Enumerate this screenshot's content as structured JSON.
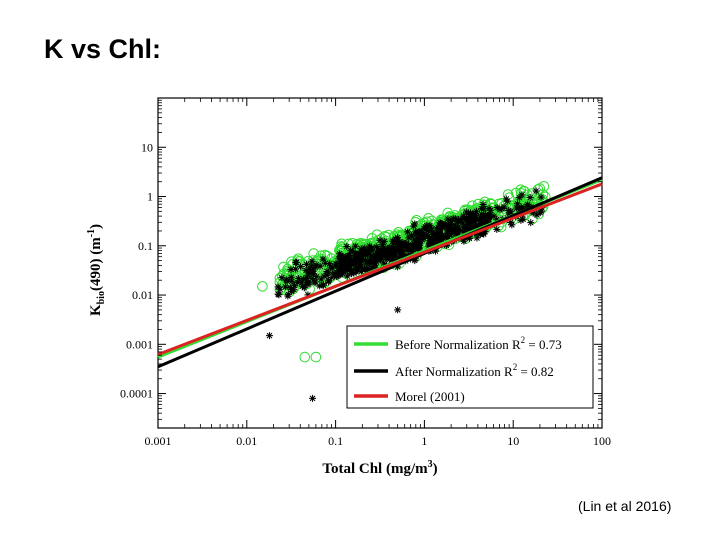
{
  "slide": {
    "title": "K vs Chl:",
    "citation": "(Lin et al 2016)"
  },
  "chart_data": {
    "type": "scatter",
    "xlabel_main": "Total Chl (mg/m",
    "xlabel_sup": "3",
    "xlabel_close": ")",
    "ylabel_main": "K",
    "ylabel_sub": "bio",
    "ylabel_rest": "(490) (m",
    "ylabel_sup": "-1",
    "ylabel_close": ")",
    "x_scale": "log",
    "y_scale": "log",
    "xlim": [
      0.001,
      100
    ],
    "ylim": [
      2e-05,
      100
    ],
    "x_ticks": [
      {
        "value": 0.001,
        "label": "0.001"
      },
      {
        "value": 0.01,
        "label": "0.01"
      },
      {
        "value": 0.1,
        "label": "0.1"
      },
      {
        "value": 1,
        "label": "1"
      },
      {
        "value": 10,
        "label": "10"
      },
      {
        "value": 100,
        "label": "100"
      }
    ],
    "y_ticks": [
      {
        "value": 0.0001,
        "label": "0.0001"
      },
      {
        "value": 0.001,
        "label": "0.001"
      },
      {
        "value": 0.01,
        "label": "0.01"
      },
      {
        "value": 0.1,
        "label": "0.1"
      },
      {
        "value": 1,
        "label": "1"
      },
      {
        "value": 10,
        "label": "10"
      }
    ],
    "series": [
      {
        "name": "Before Normalization",
        "r2_label": "R",
        "r2_sup": "2",
        "r2_value": " = 0.73",
        "marker": "circle",
        "color": "#33dd33"
      },
      {
        "name": "After Normalization",
        "r2_label": "R",
        "r2_sup": "2",
        "r2_value": " = 0.82",
        "marker": "asterisk",
        "color": "#000000"
      },
      {
        "name": "Morel (2001)",
        "r2_label": "",
        "r2_sup": "",
        "r2_value": "",
        "marker": "none",
        "color": "#dd2222"
      }
    ],
    "fit_lines": [
      {
        "name": "Before Normalization",
        "color": "#33dd33",
        "x": [
          0.001,
          100
        ],
        "y": [
          0.00055,
          2.2
        ]
      },
      {
        "name": "After Normalization",
        "color": "#000000",
        "x": [
          0.001,
          100
        ],
        "y": [
          0.00035,
          2.4
        ]
      },
      {
        "name": "Morel (2001)",
        "color": "#dd2222",
        "x": [
          0.001,
          100
        ],
        "y": [
          0.00062,
          1.8
        ]
      }
    ],
    "outlier_points": [
      {
        "series": "Before Normalization",
        "x": 0.045,
        "y": 0.00055
      },
      {
        "series": "Before Normalization",
        "x": 0.06,
        "y": 0.00055
      },
      {
        "series": "Before Normalization",
        "x": 0.015,
        "y": 0.015
      },
      {
        "series": "After Normalization",
        "x": 0.055,
        "y": 8e-05
      },
      {
        "series": "After Normalization",
        "x": 0.018,
        "y": 0.0015
      },
      {
        "series": "After Normalization",
        "x": 0.5,
        "y": 0.005
      }
    ],
    "legend_position": "bottom-right",
    "grid": false
  }
}
